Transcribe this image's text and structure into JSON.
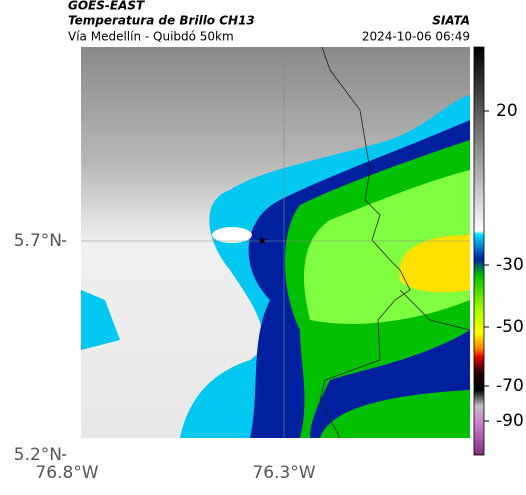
{
  "header": {
    "title": "GOES-EAST",
    "subtitle": "Temperatura de Brillo CH13",
    "region": "Vía Medellín - Quibdó 50km",
    "source": "SIATA",
    "timestamp": "2024-10-06 06:49"
  },
  "axes": {
    "lat_labels": [
      "5.7°N",
      "5.2°N"
    ],
    "lon_labels": [
      "76.8°W",
      "76.3°W"
    ]
  },
  "colorbar": {
    "ticks": [
      "20",
      "-30",
      "-50",
      "-70",
      "-90"
    ]
  }
}
